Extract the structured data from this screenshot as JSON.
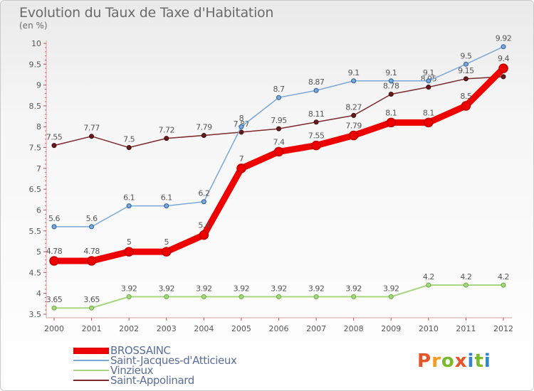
{
  "title": "Evolution du Taux de Taxe d'Habitation",
  "subtitle": "(en %)",
  "logo": {
    "text": "Proxiti",
    "colors": [
      "#e8542a",
      "#f39b1f",
      "#7ab929",
      "#e8542a",
      "#2f86c8",
      "#7ab929",
      "#2f86c8"
    ]
  },
  "chart_data": {
    "type": "line",
    "x": [
      "2000",
      "2001",
      "2002",
      "2003",
      "2004",
      "2005",
      "2006",
      "2007",
      "2008",
      "2009",
      "2010",
      "2011",
      "2012"
    ],
    "ylim": [
      3.5,
      10
    ],
    "yticks": [
      "3.5",
      "4",
      "4.5",
      "5",
      "5.5",
      "6",
      "6.5",
      "7",
      "7.5",
      "8",
      "8.5",
      "9",
      "9.5",
      "10"
    ],
    "grid": false,
    "legend_position": "bottom-left",
    "series": [
      {
        "name": "Saint-Appolinard",
        "color": "#7a2a2a",
        "width": 1.5,
        "values": [
          7.55,
          7.77,
          7.5,
          7.72,
          7.79,
          7.87,
          7.95,
          8.11,
          8.27,
          8.78,
          8.95,
          9.15,
          9.2
        ],
        "labels": [
          "7.55",
          "7.77",
          "7.5",
          "7.72",
          "7.79",
          "7.87",
          "7.95",
          "8.11",
          "8.27",
          "8.78",
          "8.95",
          "9.15",
          ""
        ]
      },
      {
        "name": "Vinzieux",
        "color": "#a5d780",
        "width": 2,
        "values": [
          3.65,
          3.65,
          3.92,
          3.92,
          3.92,
          3.92,
          3.92,
          3.92,
          3.92,
          3.92,
          4.2,
          4.2,
          4.2
        ],
        "labels": [
          "3.65",
          "3.65",
          "3.92",
          "3.92",
          "3.92",
          "3.92",
          "3.92",
          "3.92",
          "3.92",
          "3.92",
          "4.2",
          "4.2",
          "4.2"
        ]
      },
      {
        "name": "Saint-Jacques-d'Atticieux",
        "color": "#7aa8d8",
        "width": 1.5,
        "values": [
          5.6,
          5.6,
          6.1,
          6.1,
          6.2,
          8,
          8.7,
          8.87,
          9.1,
          9.1,
          9.1,
          9.5,
          9.92
        ],
        "labels": [
          "5.6",
          "5.6",
          "6.1",
          "6.1",
          "6.2",
          "8",
          "8.7",
          "8.87",
          "9.1",
          "9.1",
          "9.1",
          "9.5",
          "9.92"
        ]
      },
      {
        "name": "BROSSAINC",
        "color": "#ee0000",
        "width": 9,
        "values": [
          4.78,
          4.78,
          5,
          5,
          5.4,
          7,
          7.4,
          7.55,
          7.79,
          8.1,
          8.1,
          8.5,
          9.4
        ],
        "labels": [
          "4.78",
          "4.78",
          "5",
          "5",
          "5.4",
          "7",
          "7.4",
          "7.55",
          "7.79",
          "8.1",
          "8.1",
          "8.5",
          "9.4"
        ]
      }
    ],
    "legend_order": [
      "BROSSAINC",
      "Saint-Jacques-d'Atticieux",
      "Vinzieux",
      "Saint-Appolinard"
    ]
  }
}
